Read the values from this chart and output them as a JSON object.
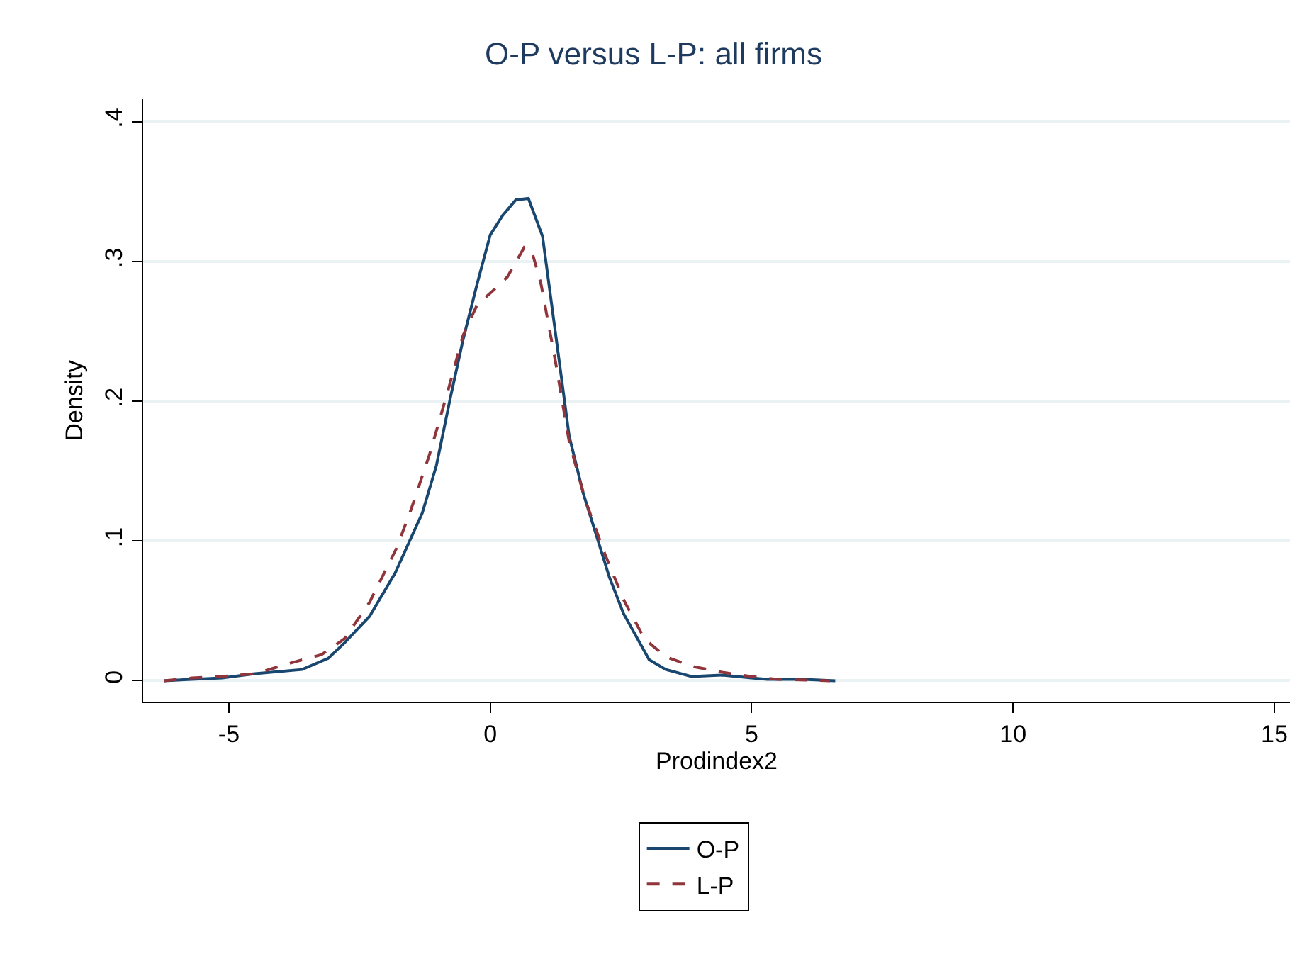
{
  "chart_data": {
    "type": "line",
    "title": "O-P versus L-P: all firms",
    "xlabel": "Prodindex2",
    "ylabel": "Density",
    "xlim": [
      -6.64,
      15.3
    ],
    "xticks": [
      -5,
      0,
      5,
      10,
      15
    ],
    "ylim": [
      -0.015,
      0.416
    ],
    "yticks": [
      0,
      {
        "value": 0.1,
        "label": ".1"
      },
      {
        "value": 0.2,
        "label": ".2"
      },
      {
        "value": 0.3,
        "label": ".3"
      },
      {
        "value": 0.4,
        "label": ".4"
      }
    ],
    "grid": "y",
    "legend": "bottom",
    "marker": "none",
    "series": [
      {
        "name": "O-P",
        "color": "#1a476f",
        "line_style": "solid",
        "x": [
          -6.24,
          -5.13,
          -4.5,
          -3.6,
          -3.1,
          -2.79,
          -2.31,
          -1.82,
          -1.3,
          -1.03,
          -0.76,
          -0.52,
          -0.25,
          0,
          0.24,
          0.49,
          0.73,
          1.0,
          1.24,
          1.51,
          1.78,
          2.28,
          2.55,
          3.04,
          3.36,
          3.85,
          4.44,
          5.0,
          5.3,
          6.0,
          6.6
        ],
        "values": [
          0,
          0.002,
          0.005,
          0.008,
          0.016,
          0.027,
          0.046,
          0.077,
          0.12,
          0.154,
          0.203,
          0.244,
          0.284,
          0.319,
          0.333,
          0.344,
          0.345,
          0.318,
          0.251,
          0.175,
          0.134,
          0.074,
          0.048,
          0.015,
          0.008,
          0.003,
          0.004,
          0.002,
          0.001,
          0.001,
          0
        ]
      },
      {
        "name": "L-P",
        "color": "#90353b",
        "line_style": "dashed",
        "x": [
          -6.24,
          -5.7,
          -5.13,
          -4.5,
          -3.74,
          -3.23,
          -2.79,
          -2.31,
          -1.79,
          -1.52,
          -1.16,
          -0.79,
          -0.52,
          -0.25,
          0.11,
          0.33,
          0.65,
          0.79,
          0.97,
          1.24,
          1.51,
          1.82,
          2.19,
          2.55,
          2.95,
          3.36,
          3.9,
          4.44,
          5.0,
          5.5,
          6.5
        ],
        "values": [
          0,
          0.002,
          0.003,
          0.005,
          0.0135,
          0.0186,
          0.03,
          0.056,
          0.095,
          0.122,
          0.162,
          0.21,
          0.247,
          0.269,
          0.281,
          0.289,
          0.31,
          0.308,
          0.284,
          0.23,
          0.171,
          0.129,
          0.091,
          0.058,
          0.03,
          0.017,
          0.01,
          0.006,
          0.003,
          0.001,
          0
        ]
      }
    ]
  }
}
